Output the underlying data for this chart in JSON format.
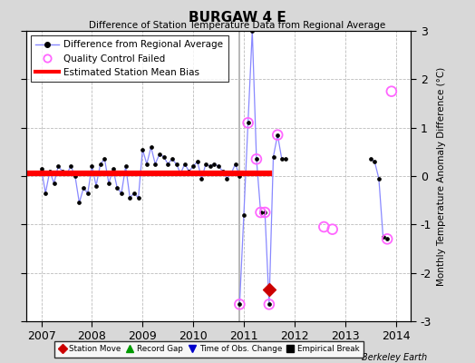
{
  "title": "BURGAW 4 E",
  "subtitle": "Difference of Station Temperature Data from Regional Average",
  "ylabel_right": "Monthly Temperature Anomaly Difference (°C)",
  "footer": "Berkeley Earth",
  "xlim": [
    2006.7,
    2014.3
  ],
  "ylim": [
    -3,
    3
  ],
  "yticks": [
    -3,
    -2,
    -1,
    0,
    1,
    2,
    3
  ],
  "xticks": [
    2007,
    2008,
    2009,
    2010,
    2011,
    2012,
    2013,
    2014
  ],
  "bias_value": 0.05,
  "background_color": "#d8d8d8",
  "plot_bg_color": "#ffffff",
  "main_line_color": "#8888ff",
  "main_marker_color": "#000000",
  "bias_line_color": "#ff0000",
  "qc_marker_color": "#ff66ff",
  "station_move_color": "#cc0000",
  "segment1_x": [
    2007.0,
    2007.083,
    2007.167,
    2007.25,
    2007.333,
    2007.417,
    2007.5,
    2007.583,
    2007.667,
    2007.75,
    2007.833,
    2007.917,
    2008.0,
    2008.083,
    2008.167,
    2008.25,
    2008.333,
    2008.417,
    2008.5,
    2008.583,
    2008.667,
    2008.75,
    2008.833,
    2008.917,
    2009.0,
    2009.083,
    2009.167,
    2009.25,
    2009.333,
    2009.417,
    2009.5,
    2009.583,
    2009.667,
    2009.75,
    2009.833,
    2009.917,
    2010.0,
    2010.083,
    2010.167,
    2010.25,
    2010.333,
    2010.417,
    2010.5,
    2010.583,
    2010.667,
    2010.75,
    2010.833,
    2010.917
  ],
  "segment1_y": [
    0.15,
    -0.35,
    0.1,
    -0.15,
    0.2,
    0.1,
    0.05,
    0.2,
    0.0,
    -0.55,
    -0.25,
    -0.35,
    0.2,
    -0.2,
    0.25,
    0.35,
    -0.15,
    0.15,
    -0.25,
    -0.35,
    0.2,
    -0.45,
    -0.35,
    -0.45,
    0.55,
    0.25,
    0.6,
    0.25,
    0.45,
    0.4,
    0.25,
    0.35,
    0.25,
    0.05,
    0.25,
    0.1,
    0.2,
    0.3,
    -0.05,
    0.25,
    0.2,
    0.25,
    0.2,
    0.1,
    -0.05,
    0.05,
    0.25,
    0.0
  ],
  "segment2_x": [
    2010.917,
    2011.0,
    2011.083,
    2011.167,
    2011.25,
    2011.333,
    2011.417,
    2011.5,
    2011.583,
    2011.667,
    2011.75,
    2011.833
  ],
  "segment2_y": [
    -2.65,
    -0.8,
    1.1,
    3.0,
    0.35,
    -0.75,
    -0.75,
    -2.65,
    0.4,
    0.85,
    0.35,
    0.35
  ],
  "segment3_x": [
    2013.5,
    2013.583,
    2013.667,
    2013.75,
    2013.833
  ],
  "segment3_y": [
    0.35,
    0.3,
    -0.05,
    -1.25,
    -1.3
  ],
  "qc_x": [
    2010.917,
    2011.083,
    2011.25,
    2011.333,
    2011.417,
    2011.5,
    2011.667,
    2012.583,
    2012.75,
    2013.833,
    2013.917
  ],
  "qc_y": [
    -2.65,
    1.1,
    0.35,
    -0.75,
    -0.75,
    -2.65,
    0.85,
    -1.05,
    -1.1,
    -1.3,
    1.75
  ],
  "station_move_x": [
    2011.5
  ],
  "station_move_y": [
    -2.35
  ],
  "vline_x": 2010.917,
  "bias_xend": 2011.5
}
